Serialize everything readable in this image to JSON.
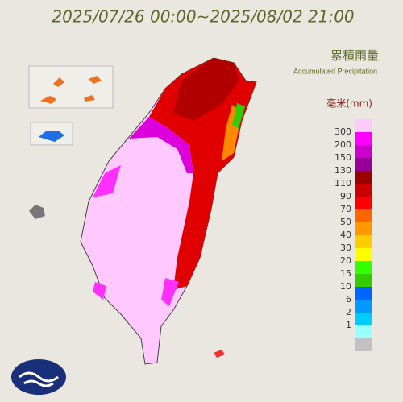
{
  "header": {
    "title": "2025/07/26 00:00~2025/08/02 21:00",
    "map_title": "累積雨量",
    "map_subtitle": "Accumulated Precipitation",
    "unit": "毫米(mm)"
  },
  "legend": {
    "items": [
      {
        "label": 300,
        "color": "#ffc8ff"
      },
      {
        "label": 200,
        "color": "#ff00ff"
      },
      {
        "label": 150,
        "color": "#cc00cc"
      },
      {
        "label": 130,
        "color": "#990099"
      },
      {
        "label": 110,
        "color": "#990000"
      },
      {
        "label": 90,
        "color": "#cc0000"
      },
      {
        "label": 70,
        "color": "#ff0000"
      },
      {
        "label": 50,
        "color": "#ff6600"
      },
      {
        "label": 40,
        "color": "#ff9900"
      },
      {
        "label": 30,
        "color": "#ffcc00"
      },
      {
        "label": 20,
        "color": "#ffff00"
      },
      {
        "label": 15,
        "color": "#33ff00"
      },
      {
        "label": 10,
        "color": "#32cc00"
      },
      {
        "label": 6,
        "color": "#0166ff"
      },
      {
        "label": 2,
        "color": "#0099ff"
      },
      {
        "label": 1,
        "color": "#00ccff"
      },
      {
        "label": null,
        "color": "#99ffff"
      },
      {
        "label": null,
        "color": "#c1c1c1"
      }
    ]
  }
}
